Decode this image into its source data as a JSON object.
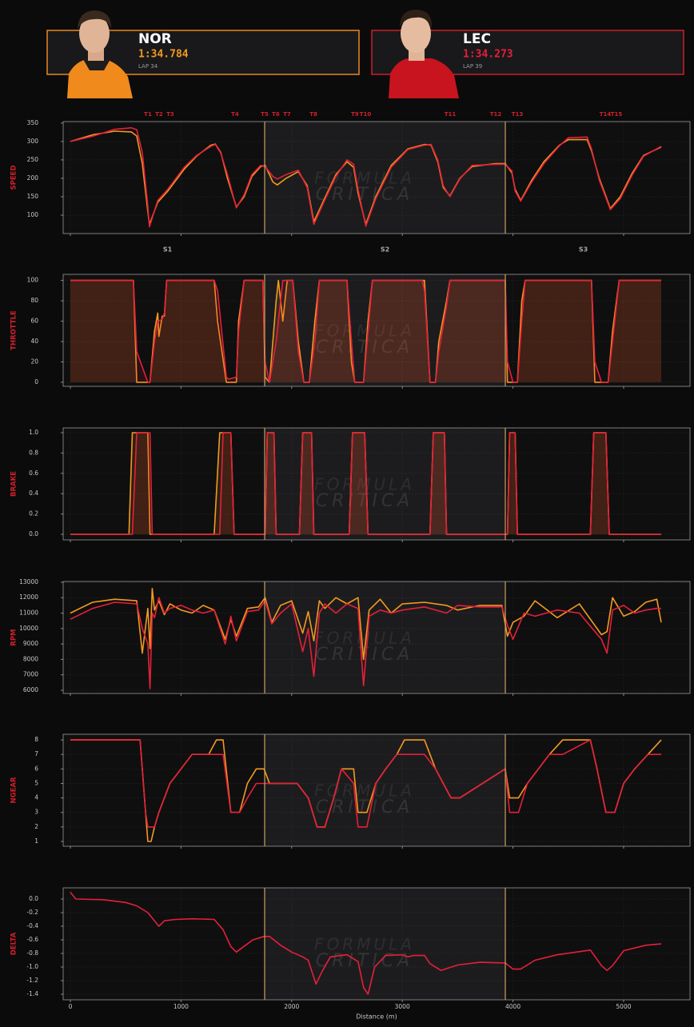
{
  "drivers": [
    {
      "code": "NOR",
      "time": "1:34.784",
      "lap": "LAP 34"
    },
    {
      "code": "LEC",
      "time": "1:34.273",
      "lap": "LAP 39"
    }
  ],
  "watermark": {
    "line1": "FORMULA",
    "line2": "CRITICA"
  },
  "sectors": {
    "labels": [
      "S1",
      "S2",
      "S3"
    ],
    "boundaries": [
      1756,
      3931
    ]
  },
  "corners": [
    {
      "label": "T1",
      "distance": 701
    },
    {
      "label": "T2",
      "distance": 802
    },
    {
      "label": "T3",
      "distance": 903
    },
    {
      "label": "T4",
      "distance": 1488
    },
    {
      "label": "T5",
      "distance": 1756
    },
    {
      "label": "T6",
      "distance": 1857
    },
    {
      "label": "T7",
      "distance": 1958
    },
    {
      "label": "T8",
      "distance": 2197
    },
    {
      "label": "T9",
      "distance": 2572
    },
    {
      "label": "T10",
      "distance": 2666
    },
    {
      "label": "T11",
      "distance": 3432
    },
    {
      "label": "T12",
      "distance": 3844
    },
    {
      "label": "T13",
      "distance": 4039
    },
    {
      "label": "T14",
      "distance": 4834
    },
    {
      "label": "T15",
      "distance": 4935
    }
  ],
  "chart_data": [
    {
      "type": "line",
      "ylabel": "SPEED",
      "xlim": [
        -65,
        5600
      ],
      "xticks": [
        0,
        1000,
        2000,
        3000,
        4000,
        5000
      ],
      "ylim": [
        50,
        354
      ],
      "yticks": [
        100,
        150,
        200,
        250,
        300,
        350
      ],
      "grid": true,
      "x": [
        0,
        200,
        400,
        550,
        600,
        650,
        700,
        715,
        790,
        880,
        1030,
        1140,
        1270,
        1310,
        1360,
        1420,
        1500,
        1570,
        1640,
        1720,
        1760,
        1830,
        1870,
        1950,
        2060,
        2140,
        2200,
        2290,
        2400,
        2500,
        2560,
        2600,
        2670,
        2760,
        2900,
        3050,
        3200,
        3260,
        3320,
        3370,
        3430,
        3520,
        3630,
        3840,
        3930,
        3990,
        4020,
        4070,
        4170,
        4280,
        4420,
        4500,
        4670,
        4710,
        4780,
        4880,
        4970,
        5080,
        5180,
        5340
      ],
      "series": [
        {
          "color": "#f39a1f",
          "values": [
            300,
            318,
            328,
            326,
            315,
            240,
            110,
            75,
            135,
            165,
            225,
            260,
            290,
            293,
            270,
            200,
            122,
            150,
            205,
            232,
            235,
            190,
            182,
            200,
            218,
            180,
            82,
            140,
            210,
            245,
            230,
            160,
            75,
            150,
            235,
            280,
            292,
            290,
            245,
            175,
            152,
            200,
            232,
            240,
            240,
            215,
            170,
            140,
            195,
            245,
            290,
            305,
            305,
            275,
            200,
            118,
            150,
            215,
            262,
            285
          ]
        },
        {
          "color": "#e5203a",
          "values": [
            300,
            314,
            333,
            337,
            332,
            270,
            125,
            68,
            140,
            170,
            230,
            262,
            287,
            292,
            268,
            210,
            120,
            155,
            210,
            235,
            232,
            205,
            198,
            210,
            222,
            175,
            75,
            135,
            205,
            250,
            238,
            170,
            70,
            145,
            230,
            278,
            290,
            292,
            250,
            180,
            150,
            198,
            235,
            238,
            238,
            220,
            165,
            138,
            190,
            240,
            288,
            310,
            312,
            280,
            195,
            115,
            145,
            210,
            260,
            287
          ]
        }
      ]
    },
    {
      "type": "area",
      "ylabel": "THROTTLE",
      "xlim": [
        -65,
        5600
      ],
      "xticks": [
        0,
        1000,
        2000,
        3000,
        4000,
        5000
      ],
      "ylim": [
        -4,
        106
      ],
      "yticks": [
        0,
        20,
        40,
        60,
        80,
        100
      ],
      "grid": true,
      "x": [
        0,
        570,
        600,
        700,
        720,
        760,
        790,
        800,
        830,
        850,
        870,
        1300,
        1330,
        1410,
        1430,
        1500,
        1520,
        1570,
        1740,
        1760,
        1800,
        1860,
        1880,
        1920,
        1960,
        2010,
        2060,
        2110,
        2160,
        2210,
        2250,
        2500,
        2540,
        2570,
        2650,
        2690,
        2730,
        3180,
        3200,
        3250,
        3300,
        3330,
        3400,
        3430,
        3930,
        3950,
        4000,
        4040,
        4080,
        4110,
        4710,
        4740,
        4800,
        4860,
        4900,
        4960,
        5340
      ],
      "series": [
        {
          "color": "#f39a1f",
          "values": [
            100,
            100,
            0,
            0,
            0,
            50,
            68,
            45,
            65,
            65,
            100,
            100,
            60,
            0,
            0,
            0,
            60,
            100,
            100,
            5,
            0,
            80,
            100,
            60,
            100,
            100,
            40,
            0,
            0,
            60,
            100,
            100,
            20,
            0,
            0,
            60,
            100,
            100,
            100,
            0,
            0,
            40,
            80,
            100,
            100,
            0,
            0,
            0,
            80,
            100,
            100,
            0,
            0,
            0,
            50,
            100,
            100
          ]
        },
        {
          "color": "#e5203a",
          "values": [
            100,
            100,
            30,
            0,
            0,
            40,
            60,
            60,
            62,
            68,
            100,
            100,
            90,
            5,
            3,
            5,
            50,
            100,
            100,
            20,
            0,
            40,
            60,
            100,
            100,
            100,
            30,
            0,
            0,
            40,
            100,
            100,
            40,
            0,
            0,
            50,
            100,
            100,
            90,
            0,
            0,
            30,
            75,
            100,
            100,
            20,
            0,
            0,
            60,
            100,
            100,
            20,
            0,
            0,
            40,
            100,
            100
          ]
        }
      ]
    },
    {
      "type": "area",
      "ylabel": "BRAKE",
      "xlim": [
        -65,
        5600
      ],
      "xticks": [
        0,
        1000,
        2000,
        3000,
        4000,
        5000
      ],
      "ylim": [
        -0.055,
        1.047
      ],
      "yticks": [
        {
          "value": 0,
          "label": "0.0"
        },
        0.2,
        0.4,
        0.6,
        0.8,
        {
          "value": 1,
          "label": "1.0"
        }
      ],
      "grid": true,
      "x": [
        0,
        530,
        560,
        600,
        700,
        720,
        740,
        1300,
        1350,
        1380,
        1450,
        1480,
        1760,
        1780,
        1840,
        1860,
        2070,
        2100,
        2180,
        2200,
        2520,
        2550,
        2660,
        2690,
        3250,
        3280,
        3380,
        3400,
        3950,
        3970,
        4020,
        4040,
        4700,
        4730,
        4840,
        4870,
        5340
      ],
      "series": [
        {
          "color": "#f39a1f",
          "values": [
            0,
            0,
            1,
            1,
            1,
            0,
            0,
            0,
            1,
            1,
            1,
            0,
            0,
            1,
            1,
            0,
            0,
            1,
            1,
            0,
            0,
            1,
            1,
            0,
            0,
            1,
            1,
            0,
            0,
            1,
            1,
            0,
            0,
            1,
            1,
            0,
            0
          ]
        },
        {
          "color": "#e5203a",
          "values": [
            0,
            0,
            0,
            1,
            1,
            1,
            0,
            0,
            0,
            1,
            1,
            0,
            0,
            1,
            1,
            0,
            0,
            1,
            1,
            0,
            0,
            1,
            1,
            0,
            0,
            1,
            1,
            0,
            0,
            1,
            1,
            0,
            0,
            1,
            1,
            0,
            0
          ]
        }
      ]
    },
    {
      "type": "line",
      "ylabel": "RPM",
      "xlim": [
        -65,
        5600
      ],
      "xticks": [
        0,
        1000,
        2000,
        3000,
        4000,
        5000
      ],
      "ylim": [
        5790,
        13050
      ],
      "yticks": [
        6000,
        7000,
        8000,
        9000,
        10000,
        11000,
        12000,
        13000
      ],
      "grid": true,
      "x": [
        0,
        200,
        400,
        600,
        650,
        700,
        720,
        740,
        760,
        800,
        850,
        900,
        1000,
        1100,
        1200,
        1300,
        1400,
        1450,
        1500,
        1600,
        1700,
        1760,
        1820,
        1900,
        2000,
        2100,
        2150,
        2200,
        2250,
        2300,
        2400,
        2500,
        2600,
        2650,
        2700,
        2800,
        2900,
        3000,
        3200,
        3400,
        3500,
        3700,
        3900,
        3950,
        4000,
        4100,
        4200,
        4400,
        4600,
        4800,
        4850,
        4900,
        5000,
        5100,
        5200,
        5300,
        5340
      ],
      "series": [
        {
          "color": "#f39a1f",
          "values": [
            11000,
            11700,
            11900,
            11800,
            8400,
            11300,
            8700,
            12600,
            11200,
            11800,
            10900,
            11600,
            11200,
            11000,
            11500,
            11200,
            9300,
            10600,
            9500,
            11300,
            11400,
            12000,
            10400,
            11500,
            11800,
            9700,
            11100,
            9200,
            11800,
            11300,
            12000,
            11600,
            12000,
            8000,
            11200,
            11900,
            11000,
            11600,
            11700,
            11500,
            11200,
            11500,
            11500,
            9500,
            10400,
            10800,
            11800,
            10700,
            11600,
            9600,
            9800,
            12000,
            10800,
            11100,
            11700,
            11900,
            10400
          ]
        },
        {
          "color": "#e5203a",
          "values": [
            10600,
            11300,
            11700,
            11600,
            10000,
            9000,
            6100,
            11000,
            10700,
            12000,
            11000,
            11300,
            11500,
            11200,
            11000,
            11200,
            9000,
            10800,
            9200,
            11100,
            11200,
            11800,
            10300,
            11000,
            11600,
            8500,
            10000,
            6900,
            11000,
            11600,
            11000,
            11600,
            11300,
            6300,
            10800,
            11200,
            11000,
            11200,
            11400,
            11000,
            11500,
            11400,
            11400,
            10200,
            9300,
            11000,
            10800,
            11200,
            11000,
            9300,
            8400,
            11200,
            11500,
            11000,
            11200,
            11300,
            11300
          ]
        }
      ]
    },
    {
      "type": "line",
      "ylabel": "NGEAR",
      "xlim": [
        -65,
        5600
      ],
      "xticks": [
        0,
        1000,
        2000,
        3000,
        4000,
        5000
      ],
      "ylim": [
        0.67,
        8.39
      ],
      "yticks": [
        1,
        2,
        3,
        4,
        5,
        6,
        7,
        8
      ],
      "grid": true,
      "x": [
        0,
        630,
        680,
        700,
        730,
        760,
        800,
        850,
        900,
        1000,
        1100,
        1250,
        1320,
        1380,
        1450,
        1530,
        1600,
        1680,
        1750,
        1800,
        2050,
        2150,
        2230,
        2300,
        2380,
        2450,
        2560,
        2600,
        2680,
        2760,
        2850,
        2950,
        3020,
        3200,
        3300,
        3440,
        3520,
        3930,
        3970,
        4050,
        4130,
        4230,
        4330,
        4450,
        4700,
        4760,
        4840,
        4920,
        5000,
        5100,
        5220,
        5340
      ],
      "series": [
        {
          "color": "#f39a1f",
          "values": [
            8,
            8,
            3,
            1,
            1,
            2,
            3,
            4,
            5,
            6,
            7,
            7,
            8,
            8,
            3,
            3,
            5,
            6,
            6,
            5,
            5,
            4,
            2,
            2,
            4,
            6,
            6,
            3,
            3,
            5,
            6,
            7,
            8,
            8,
            6,
            4,
            4,
            6,
            4,
            4,
            5,
            6,
            7,
            8,
            8,
            6,
            3,
            3,
            5,
            6,
            7,
            8
          ]
        },
        {
          "color": "#e5203a",
          "values": [
            8,
            8,
            3,
            2,
            2,
            2,
            3,
            4,
            5,
            6,
            7,
            7,
            7,
            7,
            3,
            3,
            4,
            5,
            5,
            5,
            5,
            4,
            2,
            2,
            4,
            6,
            5,
            2,
            2,
            5,
            6,
            7,
            7,
            7,
            6,
            4,
            4,
            6,
            3,
            3,
            5,
            6,
            7,
            7,
            8,
            6,
            3,
            3,
            5,
            6,
            7,
            7
          ]
        }
      ]
    },
    {
      "type": "line",
      "ylabel": "DELTA",
      "xlabel": "Distance (m)",
      "xlim": [
        -65,
        5600
      ],
      "xticks": [
        0,
        1000,
        2000,
        3000,
        4000,
        5000
      ],
      "ylim": [
        -1.482,
        0.165
      ],
      "yticks": [
        {
          "value": 0,
          "label": "0.0"
        },
        -0.2,
        -0.4,
        -0.6,
        -0.8,
        {
          "value": -1,
          "label": "-1.0"
        },
        -1.2,
        -1.4
      ],
      "grid": true,
      "x": [
        0,
        50,
        300,
        500,
        600,
        700,
        750,
        800,
        850,
        950,
        1100,
        1300,
        1380,
        1450,
        1500,
        1550,
        1650,
        1750,
        1800,
        1900,
        2000,
        2100,
        2150,
        2220,
        2280,
        2350,
        2500,
        2600,
        2650,
        2690,
        2750,
        2850,
        3000,
        3050,
        3100,
        3200,
        3250,
        3350,
        3500,
        3700,
        3930,
        4000,
        4070,
        4200,
        4400,
        4700,
        4800,
        4850,
        4900,
        5000,
        5200,
        5340
      ],
      "series": [
        {
          "color": "#e5203a",
          "values": [
            0.1,
            0,
            -0.01,
            -0.05,
            -0.1,
            -0.2,
            -0.3,
            -0.4,
            -0.32,
            -0.3,
            -0.29,
            -0.3,
            -0.45,
            -0.7,
            -0.78,
            -0.72,
            -0.6,
            -0.55,
            -0.55,
            -0.68,
            -0.78,
            -0.85,
            -0.9,
            -1.25,
            -1.05,
            -0.85,
            -0.82,
            -0.92,
            -1.3,
            -1.4,
            -1,
            -0.83,
            -0.82,
            -0.85,
            -0.83,
            -0.83,
            -0.95,
            -1.05,
            -0.97,
            -0.93,
            -0.94,
            -1.03,
            -1.03,
            -0.9,
            -0.82,
            -0.75,
            -0.98,
            -1.05,
            -0.98,
            -0.76,
            -0.68,
            -0.66
          ]
        }
      ]
    }
  ]
}
